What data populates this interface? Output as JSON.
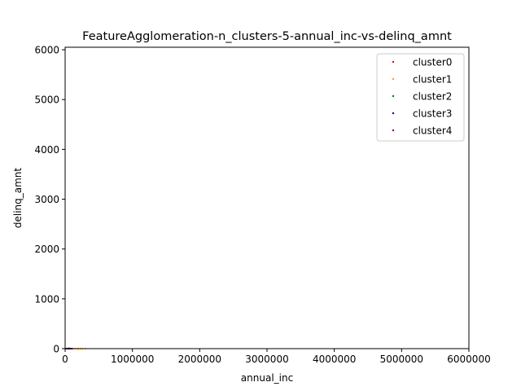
{
  "chart_data": {
    "type": "scatter",
    "title": "FeatureAgglomeration-n_clusters-5-annual_inc-vs-delinq_amnt",
    "xlabel": "annual_inc",
    "ylabel": "delinq_amnt",
    "xlim": [
      0,
      6000000
    ],
    "ylim": [
      0,
      6050
    ],
    "xticks": [
      0,
      1000000,
      2000000,
      3000000,
      4000000,
      5000000,
      6000000
    ],
    "xtick_labels": [
      "0",
      "1000000",
      "2000000",
      "3000000",
      "4000000",
      "5000000",
      "6000000"
    ],
    "yticks": [
      0,
      1000,
      2000,
      3000,
      4000,
      5000,
      6000
    ],
    "ytick_labels": [
      "0",
      "1000",
      "2000",
      "3000",
      "4000",
      "5000",
      "6000"
    ],
    "legend_position": "top-right",
    "grid": false,
    "series": [
      {
        "name": "cluster0",
        "color": "#ff0000",
        "points": [
          [
            30000,
            0
          ],
          [
            45000,
            0
          ],
          [
            60000,
            0
          ],
          [
            75000,
            0
          ],
          [
            90000,
            0
          ],
          [
            110000,
            0
          ],
          [
            55000,
            10
          ]
        ]
      },
      {
        "name": "cluster1",
        "color": "#ffa500",
        "points": [
          [
            120000,
            0
          ],
          [
            150000,
            0
          ],
          [
            180000,
            0
          ],
          [
            200000,
            0
          ],
          [
            230000,
            0
          ],
          [
            260000,
            0
          ],
          [
            300000,
            0
          ]
        ]
      },
      {
        "name": "cluster2",
        "color": "#008000",
        "points": [
          [
            20000,
            0
          ],
          [
            35000,
            0
          ],
          [
            50000,
            0
          ],
          [
            65000,
            0
          ],
          [
            80000,
            0
          ]
        ]
      },
      {
        "name": "cluster3",
        "color": "#0000cd",
        "points": [
          [
            25000,
            0
          ],
          [
            40000,
            0
          ],
          [
            70000,
            0
          ],
          [
            95000,
            0
          ]
        ]
      },
      {
        "name": "cluster4",
        "color": "#800080",
        "points": [
          [
            15000,
            0
          ],
          [
            32000,
            0
          ],
          [
            48000,
            0
          ],
          [
            85000,
            0
          ]
        ]
      }
    ]
  }
}
